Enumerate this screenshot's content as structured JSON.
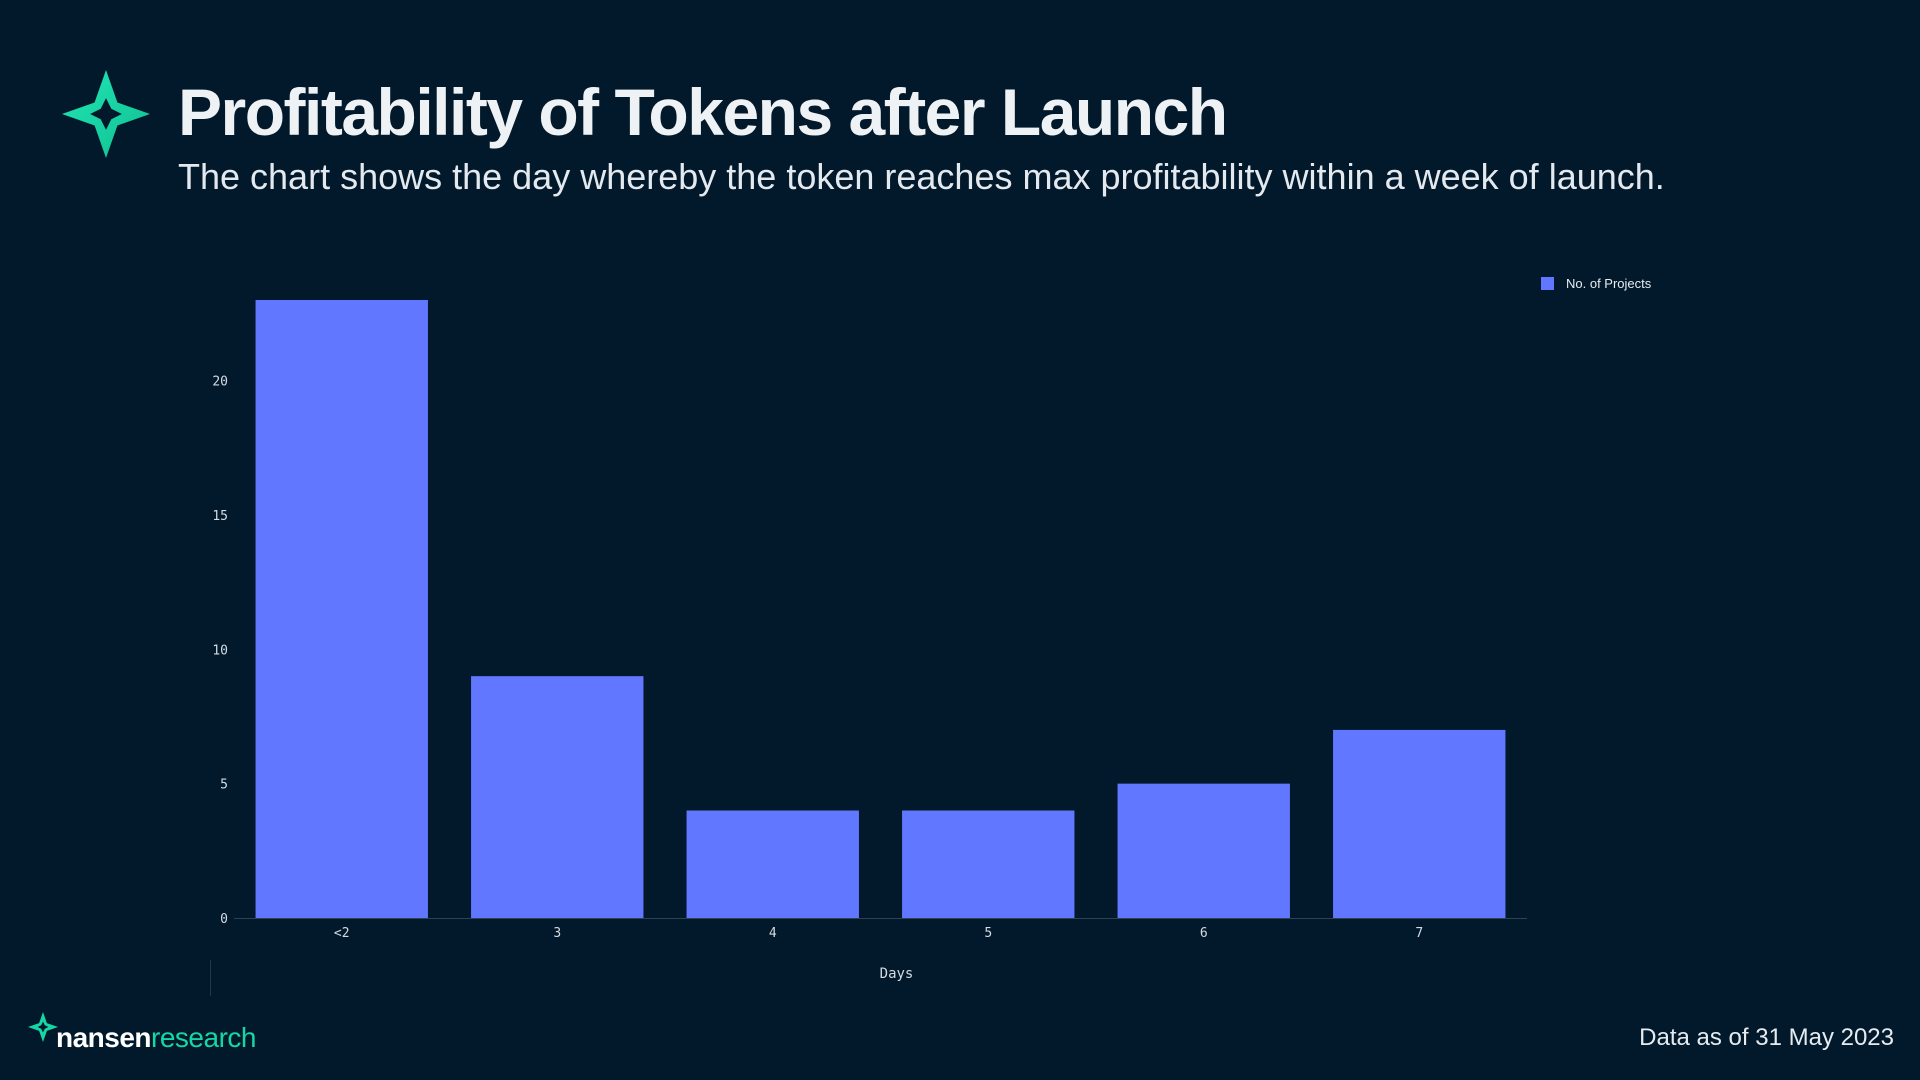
{
  "header": {
    "title": "Profitability of Tokens after Launch",
    "subtitle": "The chart shows the day whereby the token reaches max profitability within a week of launch."
  },
  "legend": {
    "label": "No. of Projects"
  },
  "footer": {
    "brand_name": "nansen",
    "brand_sub": "research",
    "data_as_of": "Data as of 31 May 2023"
  },
  "colors": {
    "background": "#01192b",
    "bar": "#6177ff",
    "accent": "#16d6a6"
  },
  "icons": {
    "logo": "nansen-star-icon"
  },
  "chart_data": {
    "type": "bar",
    "title": "Profitability of Tokens after Launch",
    "subtitle": "The chart shows the day whereby the token reaches max profitability within a week of launch.",
    "xlabel": "Days",
    "ylabel": "",
    "categories": [
      "<2",
      "3",
      "4",
      "5",
      "6",
      "7"
    ],
    "series": [
      {
        "name": "No. of Projects",
        "values": [
          23,
          9,
          4,
          4,
          5,
          7
        ]
      }
    ],
    "yticks": [
      0,
      5,
      10,
      15,
      20
    ],
    "ylim": [
      0,
      23
    ],
    "grid": false,
    "legend_position": "top-right"
  }
}
